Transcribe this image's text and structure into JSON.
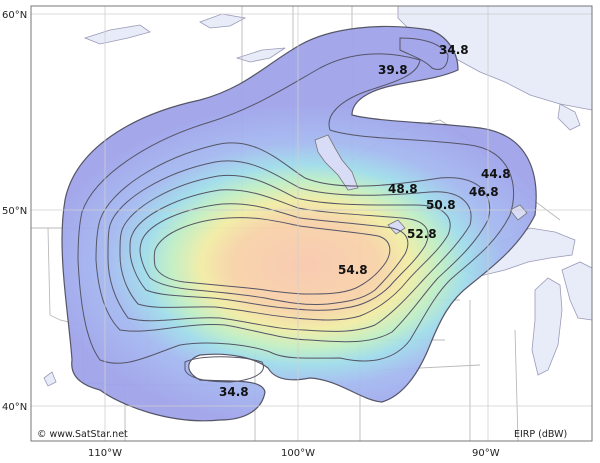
{
  "map": {
    "copyright": "© www.SatStar.net",
    "legend_unit": "EIRP (dBW)",
    "latitude_labels": [
      "60°N",
      "50°N",
      "40°N"
    ],
    "longitude_labels": [
      "110°W",
      "100°W",
      "90°W"
    ],
    "contour_labels": [
      "34.8",
      "39.8",
      "44.8",
      "46.8",
      "48.8",
      "50.8",
      "52.8",
      "54.8",
      "34.8"
    ],
    "colors": {
      "land": "#ffffff",
      "water": "#e8ebf8",
      "border": "#b9b9b9",
      "grid": "#cfcfcf",
      "frame": "#777777",
      "contour_line": "#555566",
      "footprint_outer": "#a7aaee",
      "footprint_core": "#f7c9b0"
    }
  }
}
